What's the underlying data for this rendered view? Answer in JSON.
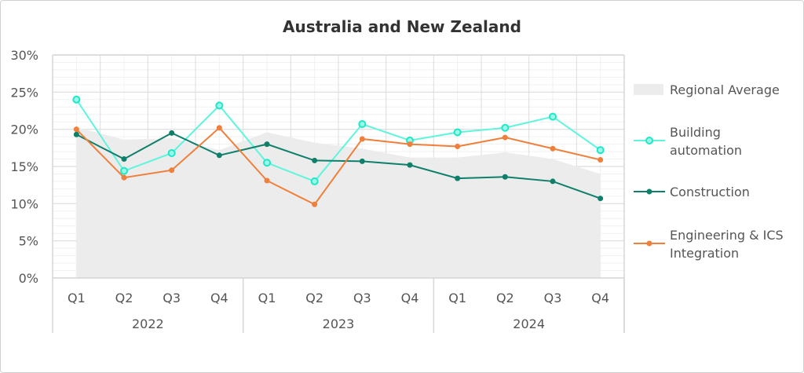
{
  "chart_data": {
    "type": "line",
    "title": "Australia and New Zealand",
    "categories": [
      "Q1",
      "Q2",
      "Q3",
      "Q4",
      "Q1",
      "Q2",
      "Q3",
      "Q4",
      "Q1",
      "Q2",
      "Q3",
      "Q4"
    ],
    "groups": [
      {
        "label": "2022",
        "span": 4
      },
      {
        "label": "2023",
        "span": 4
      },
      {
        "label": "2024",
        "span": 4
      }
    ],
    "ylim": [
      0,
      30
    ],
    "yticks": [
      0,
      5,
      10,
      15,
      20,
      25,
      30
    ],
    "ytick_labels": [
      "0%",
      "5%",
      "10%",
      "15%",
      "20%",
      "25%",
      "30%"
    ],
    "grid": true,
    "legend_position": "right",
    "series": [
      {
        "name": "Regional Average",
        "kind": "area",
        "color": "#ececec",
        "values": [
          20.3,
          18.6,
          18.8,
          17.2,
          19.6,
          18.2,
          17.4,
          16.2,
          16.2,
          16.9,
          16.0,
          14.0
        ]
      },
      {
        "name": "Building automation",
        "kind": "line",
        "marker": "open-circle",
        "color": "#5ef5dc",
        "values": [
          24.0,
          14.4,
          16.8,
          23.2,
          15.5,
          13.0,
          20.7,
          18.5,
          19.6,
          20.2,
          21.7,
          17.2
        ]
      },
      {
        "name": "Construction",
        "kind": "line",
        "marker": "dot",
        "color": "#0e7f6a",
        "values": [
          19.3,
          16.0,
          19.5,
          16.5,
          18.0,
          15.8,
          15.7,
          15.2,
          13.4,
          13.6,
          13.0,
          10.7
        ]
      },
      {
        "name": "Engineering & ICS Integration",
        "kind": "line",
        "marker": "dot",
        "color": "#ef7f3a",
        "values": [
          20.0,
          13.5,
          14.5,
          20.2,
          13.1,
          9.9,
          18.7,
          18.0,
          17.7,
          18.9,
          17.4,
          15.9
        ]
      }
    ],
    "legend_lines": [
      [
        "Regional Average"
      ],
      [
        "Building",
        "automation"
      ],
      [
        "Construction"
      ],
      [
        "Engineering & ICS",
        "Integration"
      ]
    ]
  }
}
